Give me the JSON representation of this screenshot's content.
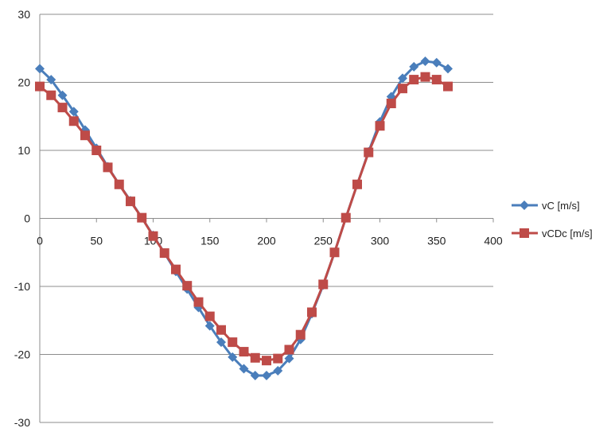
{
  "chart_data": {
    "type": "line",
    "x": [
      0,
      10,
      20,
      30,
      40,
      50,
      60,
      70,
      80,
      90,
      100,
      110,
      120,
      130,
      140,
      150,
      160,
      170,
      180,
      190,
      200,
      210,
      220,
      230,
      240,
      250,
      260,
      270,
      280,
      290,
      300,
      310,
      320,
      330,
      340,
      350,
      360
    ],
    "series": [
      {
        "name": "vC [m/s]",
        "color": "#4a7ebb",
        "marker": "diamond",
        "values": [
          22.0,
          20.4,
          18.1,
          15.7,
          13.0,
          10.3,
          7.6,
          5.0,
          2.6,
          0.1,
          -2.5,
          -5.1,
          -7.8,
          -10.4,
          -13.1,
          -15.8,
          -18.2,
          -20.4,
          -22.1,
          -23.1,
          -23.1,
          -22.4,
          -20.6,
          -17.8,
          -14.0,
          -9.8,
          -5.0,
          0.1,
          5.0,
          9.8,
          14.2,
          17.9,
          20.6,
          22.3,
          23.1,
          22.9,
          22.0
        ]
      },
      {
        "name": "vCDc [m/s]",
        "color": "#be4b48",
        "marker": "square",
        "values": [
          19.4,
          18.1,
          16.3,
          14.3,
          12.2,
          10.0,
          7.5,
          5.0,
          2.5,
          0.1,
          -2.6,
          -5.1,
          -7.5,
          -9.9,
          -12.3,
          -14.4,
          -16.4,
          -18.2,
          -19.6,
          -20.5,
          -20.9,
          -20.6,
          -19.3,
          -17.1,
          -13.8,
          -9.7,
          -5.0,
          0.1,
          5.0,
          9.7,
          13.6,
          16.9,
          19.1,
          20.4,
          20.8,
          20.4,
          19.4
        ]
      }
    ],
    "xlim": [
      0,
      400
    ],
    "ylim": [
      -30,
      30
    ],
    "xticks": [
      0,
      50,
      100,
      150,
      200,
      250,
      300,
      350,
      400
    ],
    "yticks": [
      -30,
      -20,
      -10,
      0,
      10,
      20,
      30
    ],
    "grid": "horizontal",
    "legend_position": "right",
    "title": "",
    "xlabel": "",
    "ylabel": ""
  }
}
